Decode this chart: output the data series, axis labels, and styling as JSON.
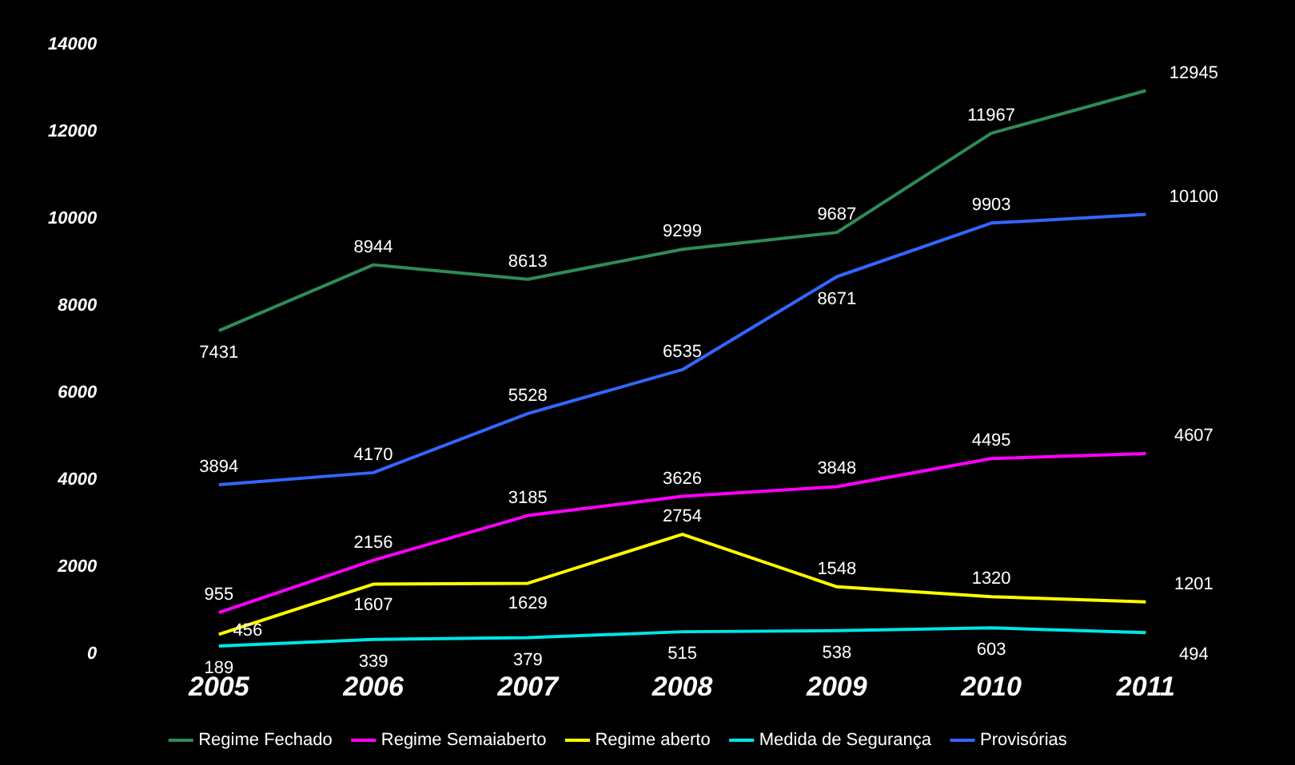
{
  "chart_data": {
    "type": "line",
    "categories": [
      "2005",
      "2006",
      "2007",
      "2008",
      "2009",
      "2010",
      "2011"
    ],
    "series": [
      {
        "name": "Regime Fechado",
        "color": "#2e8b57",
        "values": [
          7431,
          8944,
          8613,
          9299,
          9687,
          11967,
          12945
        ]
      },
      {
        "name": "Regime Semaiaberto",
        "color": "#ff00ff",
        "values": [
          955,
          2156,
          3185,
          3626,
          3848,
          4495,
          4607
        ]
      },
      {
        "name": "Regime aberto",
        "color": "#ffff00",
        "values": [
          456,
          1607,
          1629,
          2754,
          1548,
          1320,
          1201
        ]
      },
      {
        "name": "Medida de Segurança",
        "color": "#00e5e5",
        "values": [
          189,
          339,
          379,
          515,
          538,
          603,
          494
        ]
      },
      {
        "name": "Provisórias",
        "color": "#3366ff",
        "values": [
          3894,
          4170,
          5528,
          6535,
          8671,
          9903,
          10100
        ]
      }
    ],
    "ylim": [
      0,
      14000
    ],
    "yticks": [
      0,
      2000,
      4000,
      6000,
      8000,
      10000,
      12000,
      14000
    ],
    "grid": false,
    "legend": "bottom",
    "marker": "none",
    "line_style": "solid",
    "data_labels": true
  }
}
